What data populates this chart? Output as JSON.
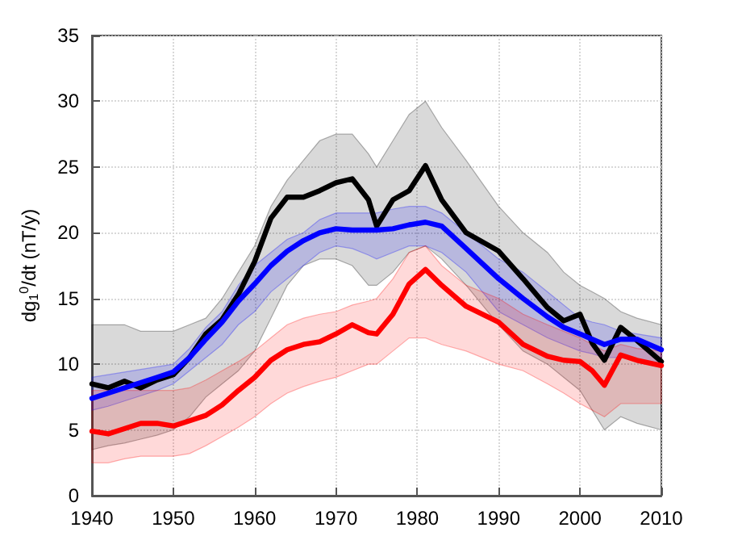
{
  "chart_data": {
    "type": "line",
    "ylabel": "dg$_{1}$$^{0}$/dt (nT/y)",
    "x": [
      1940,
      1942,
      1944,
      1946,
      1948,
      1950,
      1952,
      1954,
      1956,
      1958,
      1960,
      1962,
      1964,
      1966,
      1968,
      1970,
      1972,
      1974,
      1975,
      1977,
      1979,
      1981,
      1983,
      1986,
      1990,
      1993,
      1996,
      1998,
      2000,
      2001.5,
      2003,
      2005,
      2007,
      2010
    ],
    "series": [
      {
        "color": "#000000",
        "values": [
          8.5,
          8.2,
          8.7,
          8.2,
          8.8,
          9.2,
          10.5,
          12.3,
          13.4,
          15.3,
          17.8,
          21.1,
          22.7,
          22.7,
          23.2,
          23.8,
          24.1,
          22.5,
          20.5,
          22.5,
          23.2,
          25.1,
          22.5,
          20,
          18.6,
          16.5,
          14.3,
          13.3,
          13.8,
          11.6,
          10.3,
          12.8,
          11.8,
          10.2
        ],
        "lower": [
          3.5,
          3.8,
          4,
          4.3,
          4.6,
          5,
          6,
          7.5,
          8.5,
          9.5,
          11,
          13.5,
          16,
          17.5,
          18,
          18,
          17.5,
          16,
          16,
          17,
          18.5,
          19,
          18,
          16,
          13,
          11,
          10,
          9,
          8,
          6.5,
          5,
          6,
          5.5,
          5
        ],
        "upper": [
          13,
          13,
          13,
          12.5,
          12.5,
          12.5,
          13,
          13.5,
          15,
          17,
          19,
          22,
          24,
          25.5,
          27,
          27.5,
          27.5,
          26,
          25,
          27,
          29,
          30,
          28,
          25.5,
          22,
          20,
          18.5,
          17,
          16,
          15.5,
          15,
          14,
          13.5,
          13
        ]
      },
      {
        "color": "#0000ff",
        "values": [
          7.4,
          7.8,
          8.2,
          8.6,
          9.0,
          9.4,
          10.5,
          11.9,
          13.2,
          14.8,
          16.1,
          17.5,
          18.6,
          19.4,
          20.0,
          20.3,
          20.2,
          20.2,
          20.2,
          20.3,
          20.6,
          20.8,
          20.5,
          18.8,
          16.5,
          15.0,
          13.6,
          12.8,
          12.3,
          11.9,
          11.5,
          11.9,
          11.9,
          11.1
        ],
        "lower": [
          6.5,
          6.8,
          7.2,
          7.6,
          8,
          8.5,
          9.5,
          10.5,
          11.5,
          13,
          14,
          15.5,
          16.5,
          17.5,
          18.5,
          19,
          18.8,
          18.3,
          18,
          18.5,
          19,
          19,
          18.5,
          17,
          14,
          13,
          12,
          11.5,
          11,
          10.8,
          10.5,
          10.5,
          10.3,
          10
        ],
        "upper": [
          9,
          9.2,
          9.4,
          9.6,
          9.8,
          10,
          11.2,
          12.8,
          14,
          16,
          17.5,
          18.5,
          19.5,
          20,
          21,
          21.5,
          21.5,
          21.5,
          21.5,
          21.8,
          22,
          22,
          21.5,
          20,
          18,
          17,
          15.5,
          14.5,
          13.5,
          13.2,
          13,
          12.5,
          12.3,
          12
        ]
      },
      {
        "color": "#ff0000",
        "values": [
          4.9,
          4.7,
          5.1,
          5.5,
          5.5,
          5.3,
          5.7,
          6.1,
          6.9,
          8.0,
          9.0,
          10.3,
          11.1,
          11.5,
          11.7,
          12.3,
          13.0,
          12.4,
          12.3,
          13.8,
          16.1,
          17.2,
          16.0,
          14.4,
          13.2,
          11.5,
          10.6,
          10.3,
          10.2,
          9.5,
          8.4,
          10.7,
          10.3,
          9.9
        ],
        "lower": [
          2.5,
          2.5,
          2.8,
          3,
          3,
          3,
          3.2,
          3.8,
          4.5,
          5.2,
          6,
          7,
          7.8,
          8.3,
          8.7,
          9,
          9.5,
          10,
          10,
          11,
          12,
          12,
          11.5,
          11,
          10,
          9.5,
          8.5,
          7.8,
          7,
          6.5,
          6,
          7,
          7,
          7
        ],
        "upper": [
          8,
          8,
          8,
          8,
          8,
          8,
          8.2,
          8.8,
          9.5,
          10.2,
          11,
          12,
          13,
          13.5,
          13.8,
          14,
          14.5,
          14.8,
          15,
          16.5,
          18.5,
          19,
          17.5,
          16,
          15,
          13.8,
          13,
          12.5,
          12,
          11.5,
          11,
          11.5,
          11.2,
          11
        ]
      }
    ],
    "xlim": [
      1940,
      2010
    ],
    "xticks": [
      1940,
      1950,
      1960,
      1970,
      1980,
      1990,
      2000,
      2010
    ],
    "ylim": [
      0,
      35
    ],
    "yticks": [
      0,
      5,
      10,
      15,
      20,
      25,
      30,
      35
    ],
    "grid": true,
    "marker": "none",
    "line_style": "solid"
  }
}
